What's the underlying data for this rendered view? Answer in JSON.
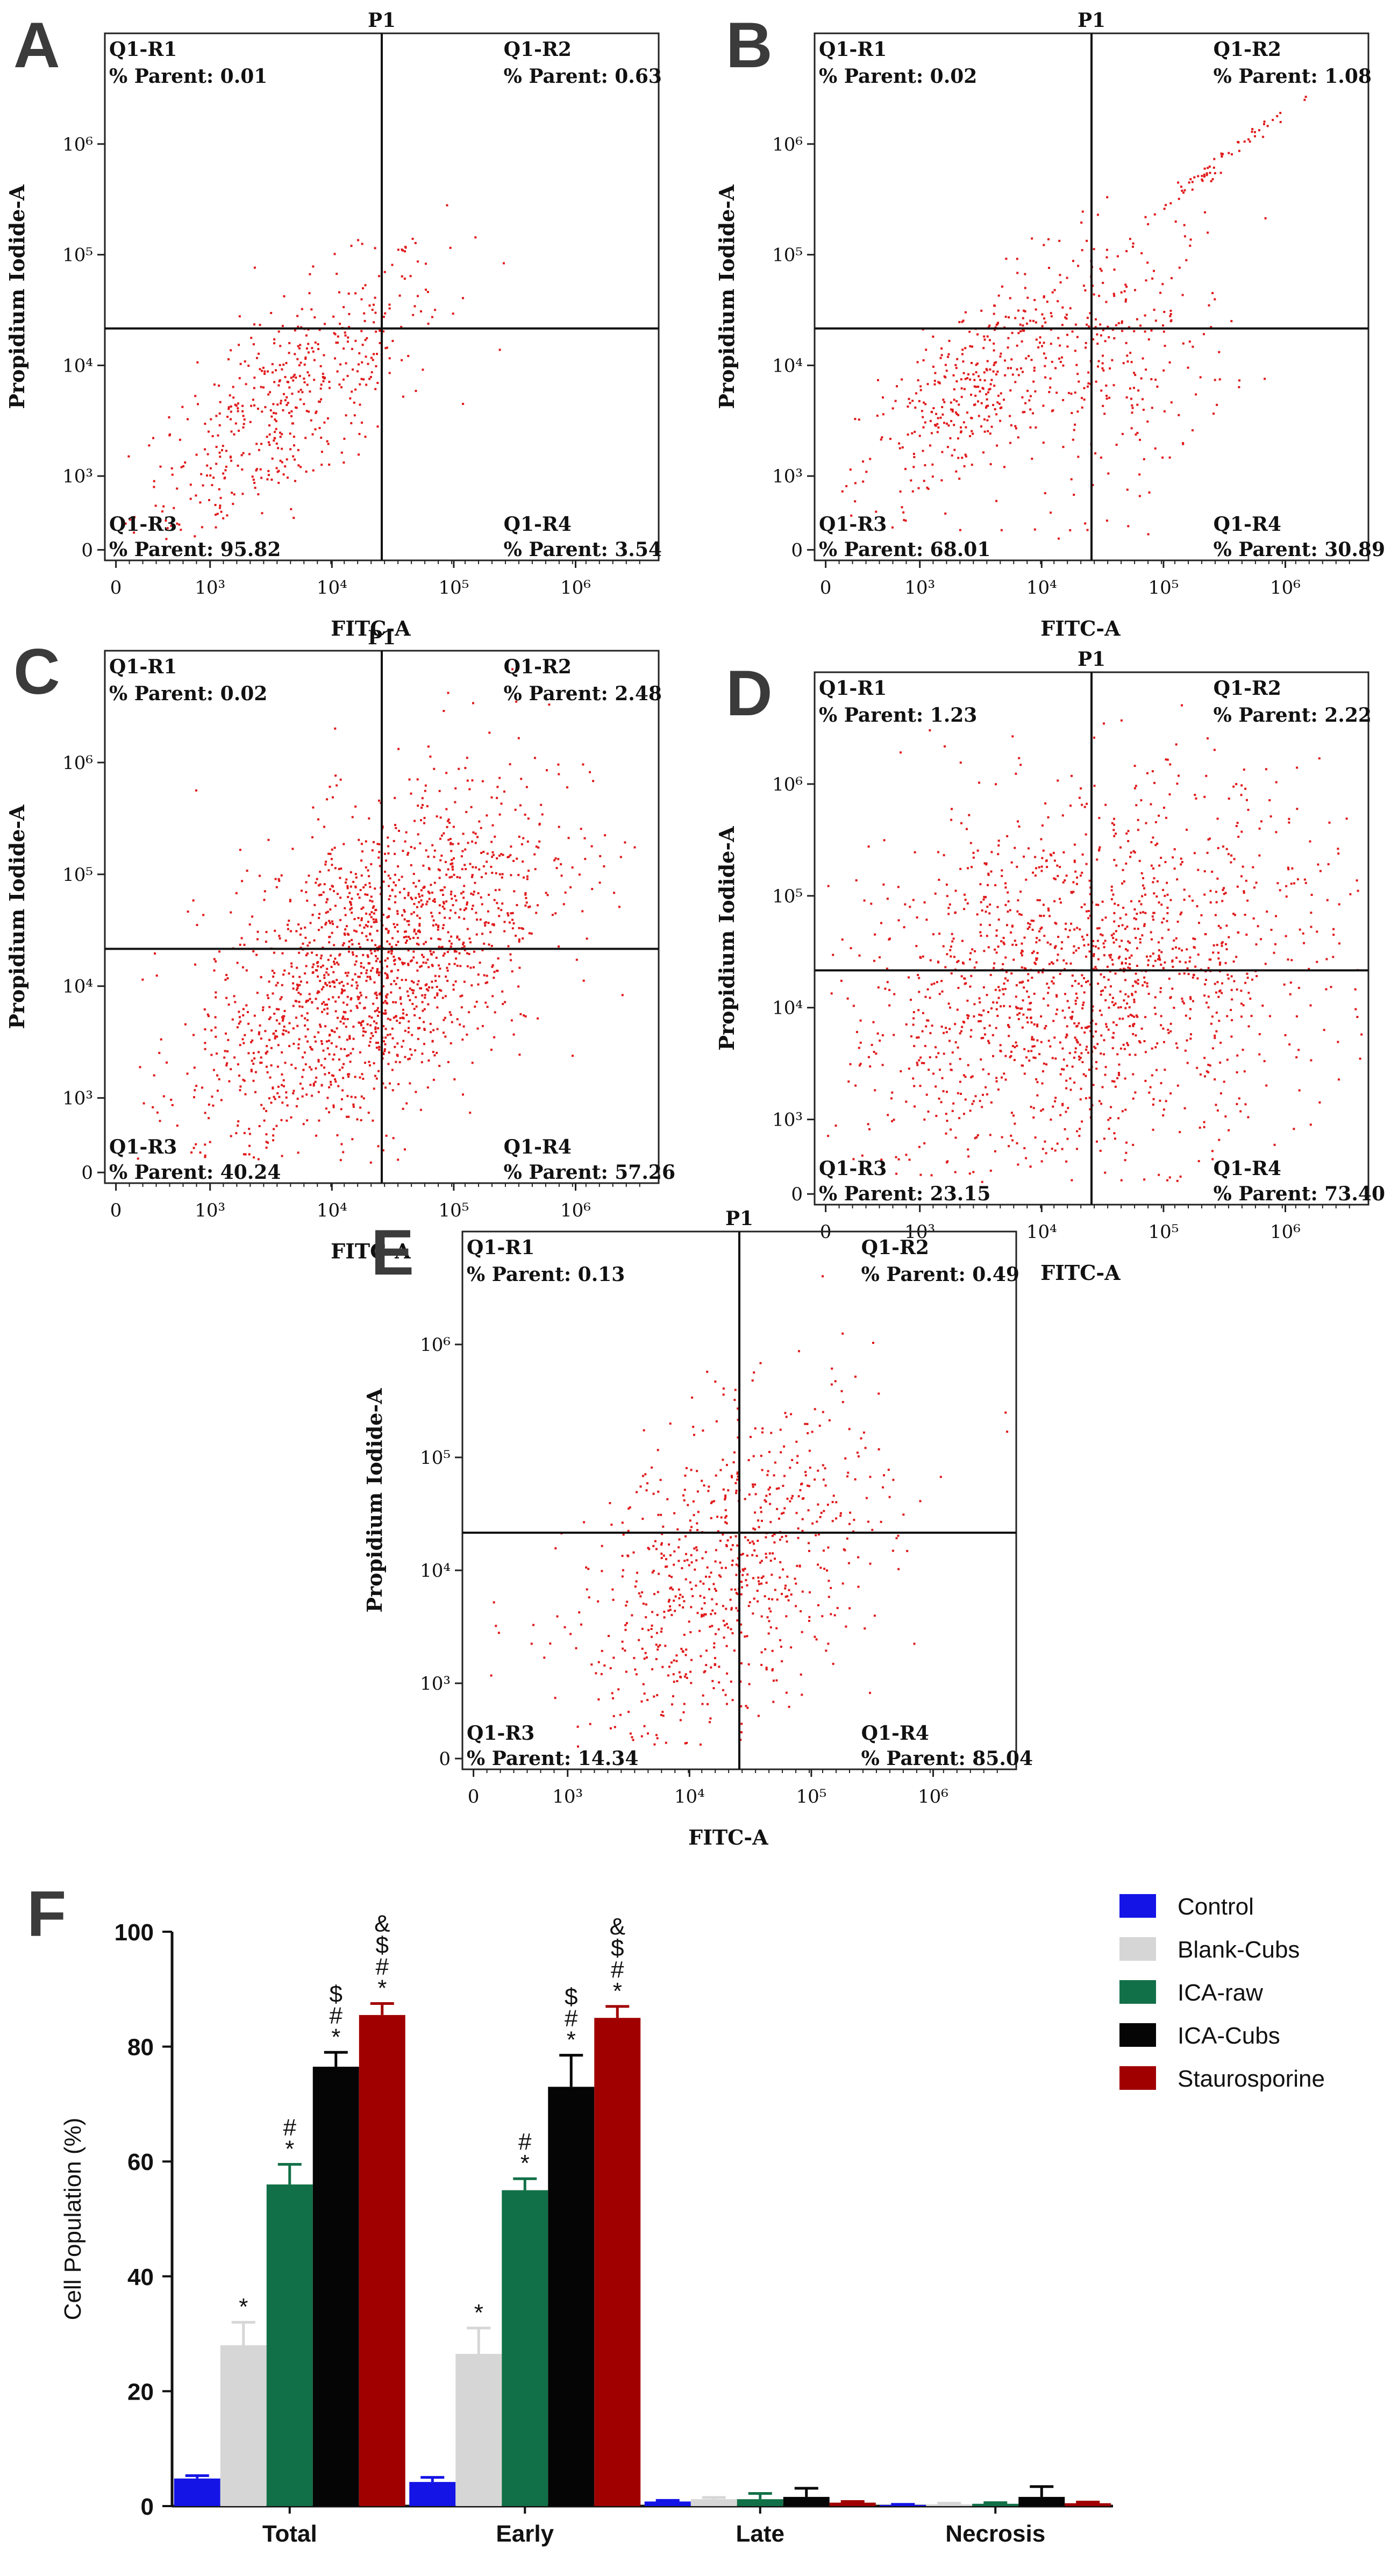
{
  "flow_panels": [
    {
      "label": "A",
      "gate": "P1",
      "x_label": "FITC-A",
      "y_label": "Propidium Iodide-A",
      "quadrants": [
        {
          "name": "Q1-R1",
          "text": "% Parent: 0.01"
        },
        {
          "name": "Q1-R2",
          "text": "% Parent: 0.63"
        },
        {
          "name": "Q1-R3",
          "text": "% Parent: 95.82"
        },
        {
          "name": "Q1-R4",
          "text": "% Parent: 3.54"
        }
      ]
    },
    {
      "label": "B",
      "gate": "P1",
      "x_label": "FITC-A",
      "y_label": "Propidium Iodide-A",
      "quadrants": [
        {
          "name": "Q1-R1",
          "text": "% Parent: 0.02"
        },
        {
          "name": "Q1-R2",
          "text": "% Parent: 1.08"
        },
        {
          "name": "Q1-R3",
          "text": "% Parent: 68.01"
        },
        {
          "name": "Q1-R4",
          "text": "% Parent: 30.89"
        }
      ]
    },
    {
      "label": "C",
      "gate": "P1",
      "x_label": "FITC-A",
      "y_label": "Propidium Iodide-A",
      "quadrants": [
        {
          "name": "Q1-R1",
          "text": "% Parent: 0.02"
        },
        {
          "name": "Q1-R2",
          "text": "% Parent: 2.48"
        },
        {
          "name": "Q1-R3",
          "text": "% Parent: 40.24"
        },
        {
          "name": "Q1-R4",
          "text": "% Parent: 57.26"
        }
      ]
    },
    {
      "label": "D",
      "gate": "P1",
      "x_label": "FITC-A",
      "y_label": "Propidium Iodide-A",
      "quadrants": [
        {
          "name": "Q1-R1",
          "text": "% Parent: 1.23"
        },
        {
          "name": "Q1-R2",
          "text": "% Parent: 2.22"
        },
        {
          "name": "Q1-R3",
          "text": "% Parent: 23.15"
        },
        {
          "name": "Q1-R4",
          "text": "% Parent: 73.40"
        }
      ]
    },
    {
      "label": "E",
      "gate": "P1",
      "x_label": "FITC-A",
      "y_label": "Propidium Iodide-A",
      "quadrants": [
        {
          "name": "Q1-R1",
          "text": "% Parent: 0.13"
        },
        {
          "name": "Q1-R2",
          "text": "% Parent: 0.49"
        },
        {
          "name": "Q1-R3",
          "text": "% Parent: 14.34"
        },
        {
          "name": "Q1-R4",
          "text": "% Parent: 85.04"
        }
      ]
    }
  ],
  "scatter_ticks": {
    "x": [
      "0",
      "10³",
      "10⁴",
      "10⁵",
      "10⁶"
    ],
    "y": [
      "0",
      "10³",
      "10⁴",
      "10⁵",
      "10⁶"
    ]
  },
  "colors": {
    "dots": "#e0191b",
    "control": "#1414e6",
    "blank": "#d6d6d6",
    "icaraw": "#127048",
    "icacubs": "#050505",
    "stauro": "#a10000"
  },
  "chart_data": [
    {
      "type": "scatter",
      "panel": "A",
      "quadrant_percent": {
        "Q1-R1": 0.01,
        "Q1-R2": 0.63,
        "Q1-R3": 95.82,
        "Q1-R4": 3.54
      }
    },
    {
      "type": "scatter",
      "panel": "B",
      "quadrant_percent": {
        "Q1-R1": 0.02,
        "Q1-R2": 1.08,
        "Q1-R3": 68.01,
        "Q1-R4": 30.89
      }
    },
    {
      "type": "scatter",
      "panel": "C",
      "quadrant_percent": {
        "Q1-R1": 0.02,
        "Q1-R2": 2.48,
        "Q1-R3": 40.24,
        "Q1-R4": 57.26
      }
    },
    {
      "type": "scatter",
      "panel": "D",
      "quadrant_percent": {
        "Q1-R1": 1.23,
        "Q1-R2": 2.22,
        "Q1-R3": 23.15,
        "Q1-R4": 73.4
      }
    },
    {
      "type": "scatter",
      "panel": "E",
      "quadrant_percent": {
        "Q1-R1": 0.13,
        "Q1-R2": 0.49,
        "Q1-R3": 14.34,
        "Q1-R4": 85.04
      }
    },
    {
      "type": "bar",
      "panel": "F",
      "title": "",
      "ylabel": "Cell Population (%)",
      "ylim": [
        0,
        100
      ],
      "yticks": [
        "0",
        "20",
        "40",
        "60",
        "80",
        "100"
      ],
      "categories": [
        "Total",
        "Early",
        "Late",
        "Necrosis"
      ],
      "series": [
        {
          "name": "Control",
          "values": [
            4.8,
            4.2,
            0.8,
            0.2
          ],
          "errors": [
            0.5,
            0.8,
            0.2,
            0.1
          ],
          "marks": [
            "",
            "",
            "",
            ""
          ]
        },
        {
          "name": "Blank-Cubs",
          "values": [
            28,
            26.5,
            1.2,
            0.3
          ],
          "errors": [
            4,
            4.5,
            0.3,
            0.2
          ],
          "marks": [
            "*",
            "*",
            "",
            ""
          ]
        },
        {
          "name": "ICA-raw",
          "values": [
            56,
            55,
            1.2,
            0.4
          ],
          "errors": [
            3.5,
            2,
            1,
            0.2
          ],
          "marks": [
            "#\n*",
            "#\n*",
            "",
            ""
          ]
        },
        {
          "name": "ICA-Cubs",
          "values": [
            76.5,
            73,
            1.6,
            1.6
          ],
          "errors": [
            2.5,
            5.5,
            1.5,
            1.8
          ],
          "marks": [
            "$\n#\n*",
            "$\n#\n*",
            "",
            ""
          ]
        },
        {
          "name": "Staurosporine",
          "values": [
            85.5,
            85,
            0.6,
            0.5
          ],
          "errors": [
            2,
            2,
            0.2,
            0.2
          ],
          "marks": [
            "&\n$\n#\n*",
            "&\n$\n#\n*",
            "",
            ""
          ]
        }
      ],
      "legend": "top-right"
    }
  ]
}
